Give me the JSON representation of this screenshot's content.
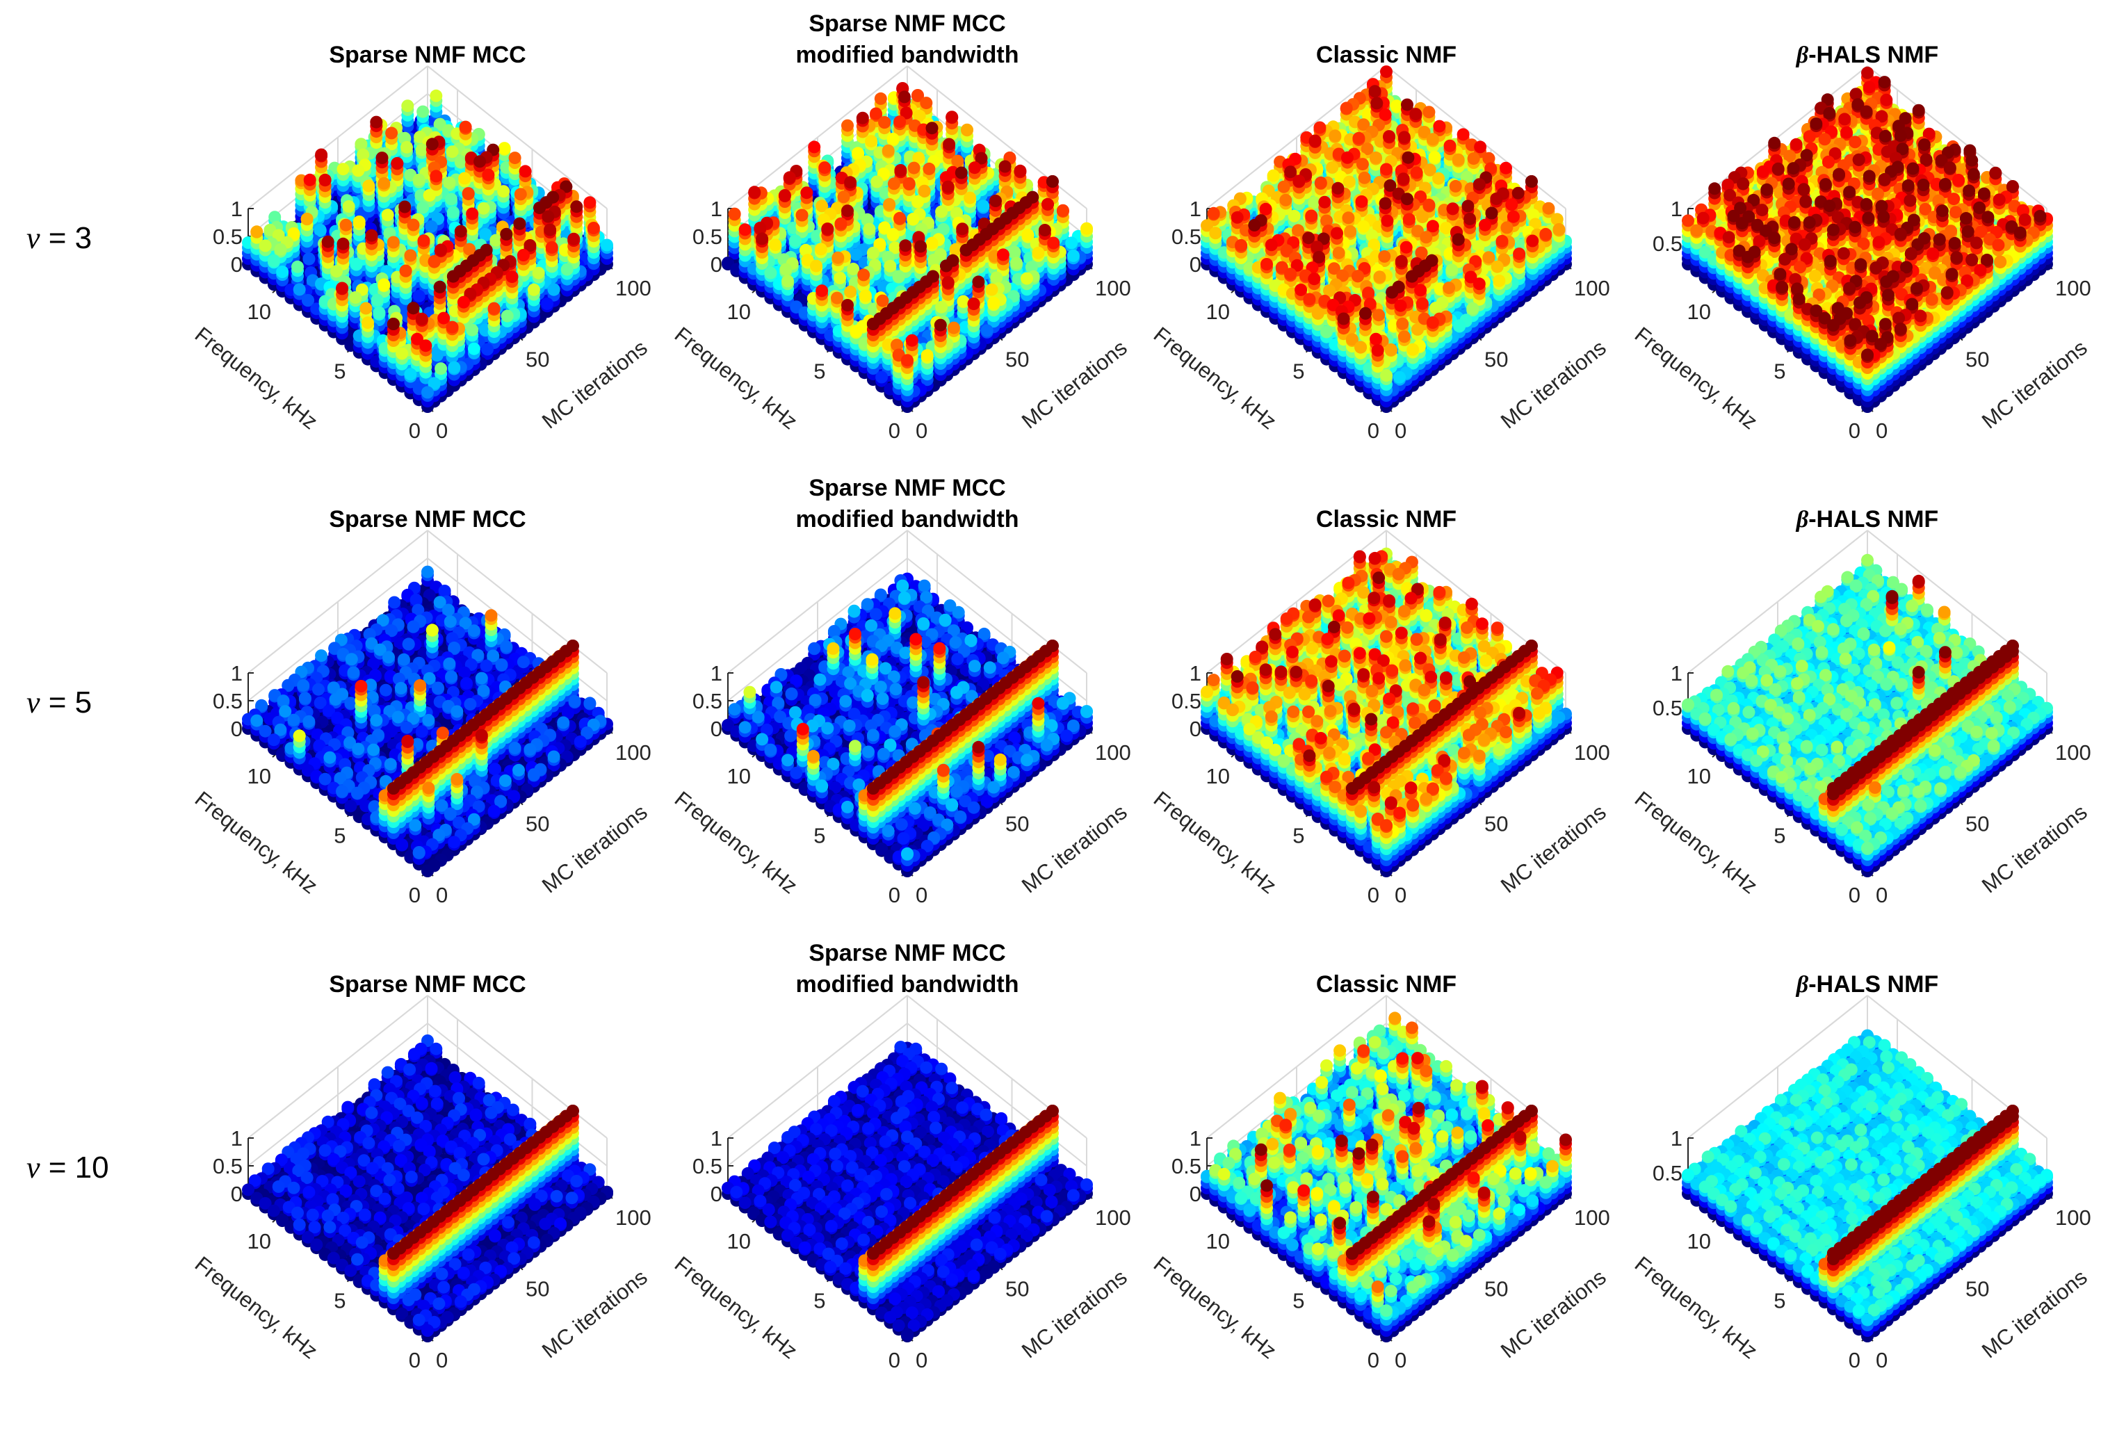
{
  "chart_data": {
    "type": "scatter3d",
    "colormap": "jet",
    "x_axis": {
      "label": "Frequency, kHz",
      "ticks": [
        "0",
        "5",
        "10"
      ],
      "tick_values": [
        0,
        5,
        10
      ],
      "range": [
        0,
        12
      ]
    },
    "y_axis": {
      "label": "MC iterations",
      "ticks": [
        "0",
        "50",
        "100"
      ],
      "tick_values": [
        0,
        50,
        100
      ],
      "range": [
        0,
        100
      ]
    },
    "rows": [
      {
        "symbol": "ν",
        "text": " = 3"
      },
      {
        "symbol": "ν",
        "text": " = 5"
      },
      {
        "symbol": "ν",
        "text": " = 10"
      }
    ],
    "panels": [
      {
        "row": 0,
        "col": 0,
        "italic_prefix": "",
        "title_lines": [
          "Sparse NMF MCC"
        ],
        "zlim": [
          0,
          1
        ],
        "z_ticks": [
          "0",
          "0.5",
          "1"
        ],
        "z_tick_values": [
          0,
          0.5,
          1
        ],
        "clim": [
          0,
          1
        ],
        "background_mean": 0.25,
        "background_spread": 0.35,
        "spike_probability": 0.16,
        "ridge": {
          "frequency_khz": 2.5,
          "value": 1,
          "coverage": 0.6
        },
        "secondary_ridge_khz": 1.2,
        "seed": 11
      },
      {
        "row": 0,
        "col": 1,
        "italic_prefix": "",
        "title_lines": [
          "Sparse NMF MCC",
          "modified bandwidth"
        ],
        "zlim": [
          0,
          1
        ],
        "z_ticks": [
          "0",
          "0.5",
          "1"
        ],
        "z_tick_values": [
          0,
          0.5,
          1
        ],
        "clim": [
          0,
          1
        ],
        "background_mean": 0.32,
        "background_spread": 0.35,
        "spike_probability": 0.2,
        "ridge": {
          "frequency_khz": 2.5,
          "value": 1,
          "coverage": 0.8
        },
        "seed": 23
      },
      {
        "row": 0,
        "col": 2,
        "italic_prefix": "",
        "title_lines": [
          "Classic NMF"
        ],
        "zlim": [
          0,
          1
        ],
        "z_ticks": [
          "0",
          "0.5",
          "1"
        ],
        "z_tick_values": [
          0,
          0.5,
          1
        ],
        "clim": [
          0,
          1
        ],
        "background_mean": 0.55,
        "background_spread": 0.35,
        "spike_probability": 0.33,
        "ridge": {
          "frequency_khz": 2.5,
          "value": 1,
          "coverage": 0.3
        },
        "seed": 37
      },
      {
        "row": 0,
        "col": 3,
        "italic_prefix": "β",
        "title_lines": [
          "-HALS NMF"
        ],
        "zlim": [
          0.2,
          1
        ],
        "z_ticks": [
          "0.5",
          "1"
        ],
        "z_tick_values": [
          0.5,
          1
        ],
        "clim": [
          0.25,
          0.95
        ],
        "background_mean": 0.82,
        "background_spread": 0.18,
        "spike_probability": 0.3,
        "ridge": {
          "frequency_khz": 2.5,
          "value": 1,
          "coverage": 0.3
        },
        "seed": 41
      },
      {
        "row": 1,
        "col": 0,
        "italic_prefix": "",
        "title_lines": [
          "Sparse NMF MCC"
        ],
        "zlim": [
          0,
          1
        ],
        "z_ticks": [
          "0",
          "0.5",
          "1"
        ],
        "z_tick_values": [
          0,
          0.5,
          1
        ],
        "clim": [
          0,
          1
        ],
        "background_mean": 0.13,
        "background_spread": 0.14,
        "spike_probability": 0.015,
        "ridge": {
          "frequency_khz": 2.5,
          "value": 1,
          "coverage": 1
        },
        "seed": 53
      },
      {
        "row": 1,
        "col": 1,
        "italic_prefix": "",
        "title_lines": [
          "Sparse NMF MCC",
          "modified bandwidth"
        ],
        "zlim": [
          0,
          1
        ],
        "z_ticks": [
          "0",
          "0.5",
          "1"
        ],
        "z_tick_values": [
          0,
          0.5,
          1
        ],
        "clim": [
          0,
          1
        ],
        "background_mean": 0.16,
        "background_spread": 0.16,
        "spike_probability": 0.025,
        "ridge": {
          "frequency_khz": 2.5,
          "value": 1,
          "coverage": 1
        },
        "seed": 67
      },
      {
        "row": 1,
        "col": 2,
        "italic_prefix": "",
        "title_lines": [
          "Classic NMF"
        ],
        "zlim": [
          0,
          1
        ],
        "z_ticks": [
          "0",
          "0.5",
          "1"
        ],
        "z_tick_values": [
          0,
          0.5,
          1
        ],
        "clim": [
          0,
          1
        ],
        "background_mean": 0.5,
        "background_spread": 0.35,
        "spike_probability": 0.3,
        "ridge": {
          "frequency_khz": 2.5,
          "value": 1,
          "coverage": 1
        },
        "seed": 71
      },
      {
        "row": 1,
        "col": 3,
        "italic_prefix": "β",
        "title_lines": [
          "-HALS NMF"
        ],
        "zlim": [
          0.2,
          1
        ],
        "z_ticks": [
          "0.5",
          "1"
        ],
        "z_tick_values": [
          0.5,
          1
        ],
        "clim": [
          0.2,
          0.9
        ],
        "background_mean": 0.5,
        "background_spread": 0.08,
        "spike_probability": 0.01,
        "ridge": {
          "frequency_khz": 2.5,
          "value": 1,
          "coverage": 1
        },
        "seed": 83
      },
      {
        "row": 2,
        "col": 0,
        "italic_prefix": "",
        "title_lines": [
          "Sparse NMF MCC"
        ],
        "zlim": [
          0,
          1
        ],
        "z_ticks": [
          "0",
          "0.5",
          "1"
        ],
        "z_tick_values": [
          0,
          0.5,
          1
        ],
        "clim": [
          0,
          1
        ],
        "background_mean": 0.09,
        "background_spread": 0.1,
        "spike_probability": 0.0,
        "ridge": {
          "frequency_khz": 2.5,
          "value": 1,
          "coverage": 1
        },
        "seed": 97
      },
      {
        "row": 2,
        "col": 1,
        "italic_prefix": "",
        "title_lines": [
          "Sparse NMF MCC",
          "modified bandwidth"
        ],
        "zlim": [
          0,
          1
        ],
        "z_ticks": [
          "0",
          "0.5",
          "1"
        ],
        "z_tick_values": [
          0,
          0.5,
          1
        ],
        "clim": [
          0,
          1
        ],
        "background_mean": 0.09,
        "background_spread": 0.08,
        "spike_probability": 0.0,
        "ridge": {
          "frequency_khz": 2.5,
          "value": 1,
          "coverage": 1
        },
        "seed": 101
      },
      {
        "row": 2,
        "col": 2,
        "italic_prefix": "",
        "title_lines": [
          "Classic NMF"
        ],
        "zlim": [
          0,
          1
        ],
        "z_ticks": [
          "0",
          "0.5",
          "1"
        ],
        "z_tick_values": [
          0,
          0.5,
          1
        ],
        "clim": [
          0,
          1
        ],
        "background_mean": 0.35,
        "background_spread": 0.25,
        "spike_probability": 0.12,
        "ridge": {
          "frequency_khz": 2.5,
          "value": 1,
          "coverage": 1
        },
        "seed": 113
      },
      {
        "row": 2,
        "col": 3,
        "italic_prefix": "β",
        "title_lines": [
          "-HALS NMF"
        ],
        "zlim": [
          0.2,
          1
        ],
        "z_ticks": [
          "0.5",
          "1"
        ],
        "z_tick_values": [
          0.5,
          1
        ],
        "clim": [
          0.2,
          0.9
        ],
        "background_mean": 0.46,
        "background_spread": 0.05,
        "spike_probability": 0.0,
        "ridge": {
          "frequency_khz": 2.5,
          "value": 1,
          "coverage": 1
        },
        "seed": 127
      }
    ]
  }
}
